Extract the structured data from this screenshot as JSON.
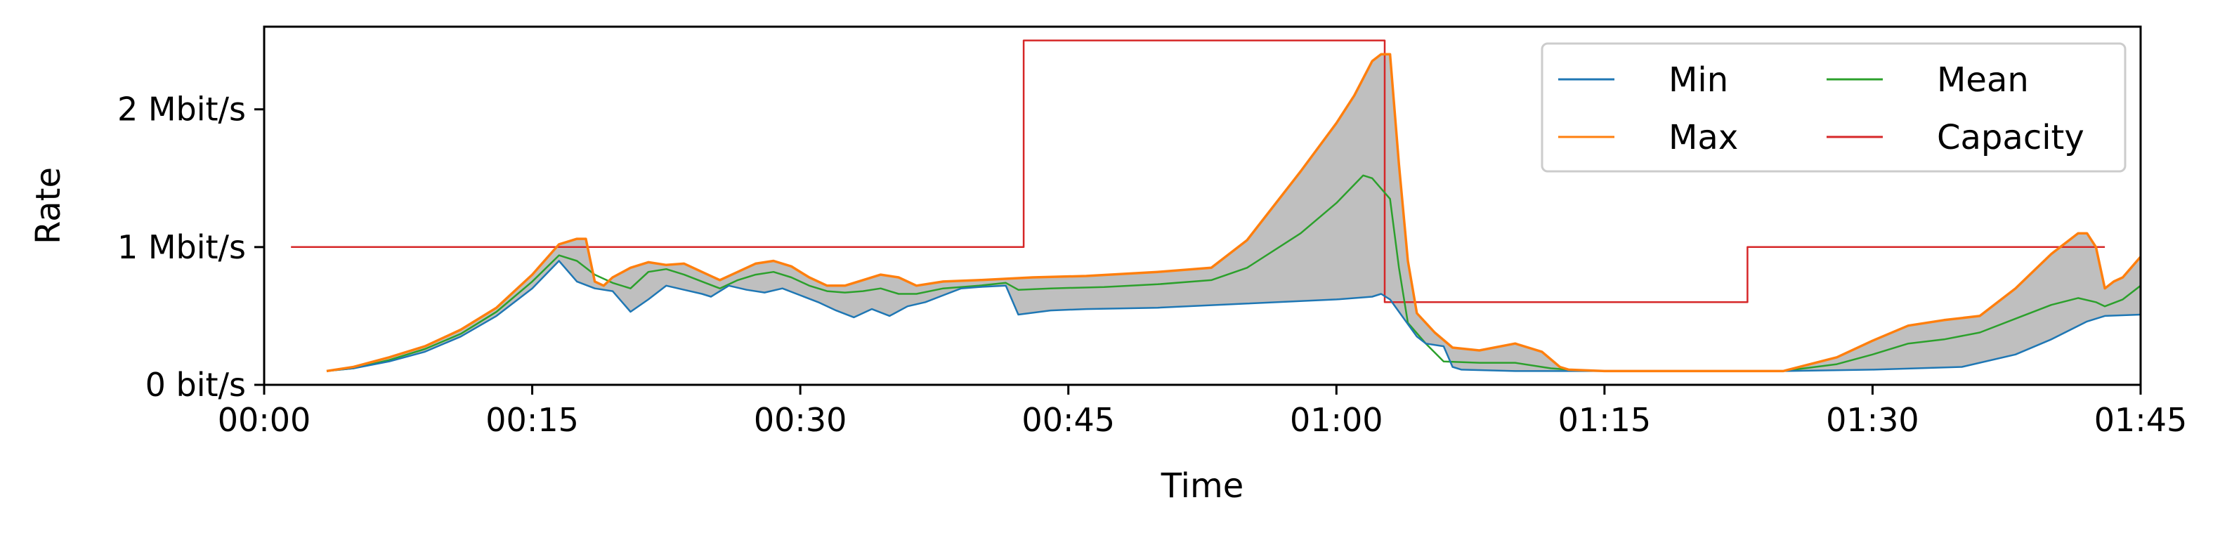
{
  "chart_data": {
    "type": "line",
    "xlabel": "Time",
    "ylabel": "Rate",
    "x_unit": "minutes",
    "xlim": [
      0,
      105
    ],
    "ylim": [
      0,
      2.6
    ],
    "y_unit": "Mbit/s",
    "grid": false,
    "legend_position": "top-right",
    "legend_columns": 2,
    "band_fill_color": "#bfbfbf",
    "x_ticks": [
      {
        "value": 0,
        "label": "00:00"
      },
      {
        "value": 15,
        "label": "00:15"
      },
      {
        "value": 30,
        "label": "00:30"
      },
      {
        "value": 45,
        "label": "00:45"
      },
      {
        "value": 60,
        "label": "01:00"
      },
      {
        "value": 75,
        "label": "01:15"
      },
      {
        "value": 90,
        "label": "01:30"
      },
      {
        "value": 105,
        "label": "01:45"
      }
    ],
    "y_ticks": [
      {
        "value": 0,
        "label": "0 bit/s"
      },
      {
        "value": 1,
        "label": "1 Mbit/s"
      },
      {
        "value": 2,
        "label": "2 Mbit/s"
      }
    ],
    "series": [
      {
        "name": "Min",
        "color": "#1f77b4",
        "points": [
          [
            3.5,
            0.1
          ],
          [
            5,
            0.12
          ],
          [
            7,
            0.17
          ],
          [
            9,
            0.24
          ],
          [
            11,
            0.35
          ],
          [
            13,
            0.5
          ],
          [
            15,
            0.7
          ],
          [
            16.5,
            0.9
          ],
          [
            17.5,
            0.75
          ],
          [
            18.5,
            0.7
          ],
          [
            19.5,
            0.68
          ],
          [
            20.5,
            0.53
          ],
          [
            21.5,
            0.62
          ],
          [
            22.5,
            0.72
          ],
          [
            23.5,
            0.69
          ],
          [
            24.5,
            0.66
          ],
          [
            25,
            0.64
          ],
          [
            26,
            0.72
          ],
          [
            27,
            0.69
          ],
          [
            28,
            0.67
          ],
          [
            29,
            0.7
          ],
          [
            30,
            0.65
          ],
          [
            31,
            0.6
          ],
          [
            32,
            0.54
          ],
          [
            33,
            0.49
          ],
          [
            34,
            0.55
          ],
          [
            35,
            0.5
          ],
          [
            36,
            0.57
          ],
          [
            37,
            0.6
          ],
          [
            38,
            0.65
          ],
          [
            39,
            0.7
          ],
          [
            40,
            0.71
          ],
          [
            41.5,
            0.72
          ],
          [
            42.2,
            0.51
          ],
          [
            44,
            0.54
          ],
          [
            46,
            0.55
          ],
          [
            50,
            0.56
          ],
          [
            55,
            0.59
          ],
          [
            60,
            0.62
          ],
          [
            62,
            0.64
          ],
          [
            62.5,
            0.66
          ],
          [
            63,
            0.62
          ],
          [
            64.5,
            0.35
          ],
          [
            65,
            0.3
          ],
          [
            66,
            0.28
          ],
          [
            66.5,
            0.13
          ],
          [
            67,
            0.11
          ],
          [
            70,
            0.1
          ],
          [
            75,
            0.1
          ],
          [
            80,
            0.1
          ],
          [
            85,
            0.1
          ],
          [
            90,
            0.11
          ],
          [
            95,
            0.13
          ],
          [
            98,
            0.22
          ],
          [
            100,
            0.33
          ],
          [
            102,
            0.46
          ],
          [
            103,
            0.5
          ],
          [
            105,
            0.51
          ]
        ]
      },
      {
        "name": "Max",
        "color": "#ff7f0e",
        "points": [
          [
            3.5,
            0.1
          ],
          [
            5,
            0.13
          ],
          [
            7,
            0.2
          ],
          [
            9,
            0.28
          ],
          [
            11,
            0.4
          ],
          [
            13,
            0.56
          ],
          [
            15,
            0.8
          ],
          [
            16.5,
            1.02
          ],
          [
            17.5,
            1.06
          ],
          [
            18,
            1.06
          ],
          [
            18.5,
            0.75
          ],
          [
            19,
            0.72
          ],
          [
            19.5,
            0.78
          ],
          [
            20.5,
            0.85
          ],
          [
            21.5,
            0.89
          ],
          [
            22.5,
            0.87
          ],
          [
            23.5,
            0.88
          ],
          [
            24.5,
            0.82
          ],
          [
            25.5,
            0.76
          ],
          [
            26.5,
            0.82
          ],
          [
            27.5,
            0.88
          ],
          [
            28.5,
            0.9
          ],
          [
            29.5,
            0.86
          ],
          [
            30.5,
            0.78
          ],
          [
            31.5,
            0.72
          ],
          [
            32.5,
            0.72
          ],
          [
            33.5,
            0.76
          ],
          [
            34.5,
            0.8
          ],
          [
            35.5,
            0.78
          ],
          [
            36.5,
            0.72
          ],
          [
            38,
            0.75
          ],
          [
            40,
            0.76
          ],
          [
            43,
            0.78
          ],
          [
            46,
            0.79
          ],
          [
            50,
            0.82
          ],
          [
            53,
            0.85
          ],
          [
            55,
            1.05
          ],
          [
            58,
            1.55
          ],
          [
            60,
            1.9
          ],
          [
            61,
            2.1
          ],
          [
            62,
            2.35
          ],
          [
            62.5,
            2.4
          ],
          [
            63,
            2.4
          ],
          [
            63.5,
            1.6
          ],
          [
            64,
            0.9
          ],
          [
            64.5,
            0.52
          ],
          [
            65.5,
            0.38
          ],
          [
            66.5,
            0.27
          ],
          [
            68,
            0.25
          ],
          [
            70,
            0.3
          ],
          [
            71.5,
            0.24
          ],
          [
            72.5,
            0.13
          ],
          [
            73,
            0.11
          ],
          [
            75,
            0.1
          ],
          [
            80,
            0.1
          ],
          [
            85,
            0.1
          ],
          [
            88,
            0.2
          ],
          [
            90,
            0.32
          ],
          [
            92,
            0.43
          ],
          [
            94,
            0.47
          ],
          [
            96,
            0.5
          ],
          [
            98,
            0.7
          ],
          [
            100,
            0.95
          ],
          [
            101.5,
            1.1
          ],
          [
            102,
            1.1
          ],
          [
            102.5,
            1.0
          ],
          [
            103,
            0.7
          ],
          [
            103.5,
            0.75
          ],
          [
            104,
            0.78
          ],
          [
            105,
            0.93
          ]
        ]
      },
      {
        "name": "Mean",
        "color": "#2ca02c",
        "points": [
          [
            3.5,
            0.1
          ],
          [
            5,
            0.12
          ],
          [
            7,
            0.18
          ],
          [
            9,
            0.26
          ],
          [
            11,
            0.37
          ],
          [
            13,
            0.53
          ],
          [
            15,
            0.75
          ],
          [
            16.5,
            0.94
          ],
          [
            17.5,
            0.9
          ],
          [
            18.5,
            0.8
          ],
          [
            19.5,
            0.74
          ],
          [
            20.5,
            0.7
          ],
          [
            21.5,
            0.82
          ],
          [
            22.5,
            0.84
          ],
          [
            23.5,
            0.8
          ],
          [
            24.5,
            0.75
          ],
          [
            25.5,
            0.7
          ],
          [
            26.5,
            0.76
          ],
          [
            27.5,
            0.8
          ],
          [
            28.5,
            0.82
          ],
          [
            29.5,
            0.78
          ],
          [
            30.5,
            0.72
          ],
          [
            31.5,
            0.68
          ],
          [
            32.5,
            0.67
          ],
          [
            33.5,
            0.68
          ],
          [
            34.5,
            0.7
          ],
          [
            35.5,
            0.66
          ],
          [
            36.5,
            0.66
          ],
          [
            38,
            0.7
          ],
          [
            40,
            0.72
          ],
          [
            41.5,
            0.74
          ],
          [
            42.2,
            0.69
          ],
          [
            44,
            0.7
          ],
          [
            47,
            0.71
          ],
          [
            50,
            0.73
          ],
          [
            53,
            0.76
          ],
          [
            55,
            0.85
          ],
          [
            58,
            1.1
          ],
          [
            60,
            1.32
          ],
          [
            61.5,
            1.52
          ],
          [
            62,
            1.5
          ],
          [
            63,
            1.35
          ],
          [
            63.5,
            0.85
          ],
          [
            64,
            0.45
          ],
          [
            65,
            0.3
          ],
          [
            66,
            0.17
          ],
          [
            68,
            0.16
          ],
          [
            70,
            0.16
          ],
          [
            72,
            0.12
          ],
          [
            73,
            0.11
          ],
          [
            75,
            0.1
          ],
          [
            80,
            0.1
          ],
          [
            85,
            0.1
          ],
          [
            88,
            0.15
          ],
          [
            90,
            0.22
          ],
          [
            92,
            0.3
          ],
          [
            94,
            0.33
          ],
          [
            96,
            0.38
          ],
          [
            98,
            0.48
          ],
          [
            100,
            0.58
          ],
          [
            101.5,
            0.63
          ],
          [
            102.5,
            0.6
          ],
          [
            103,
            0.57
          ],
          [
            104,
            0.62
          ],
          [
            105,
            0.72
          ]
        ]
      },
      {
        "name": "Capacity",
        "color": "#d62728",
        "step": true,
        "points": [
          [
            1.5,
            1.0
          ],
          [
            42.5,
            1.0
          ],
          [
            42.5,
            2.5
          ],
          [
            62.7,
            2.5
          ],
          [
            62.7,
            0.6
          ],
          [
            83,
            0.6
          ],
          [
            83,
            1.0
          ],
          [
            103,
            1.0
          ]
        ]
      }
    ]
  }
}
